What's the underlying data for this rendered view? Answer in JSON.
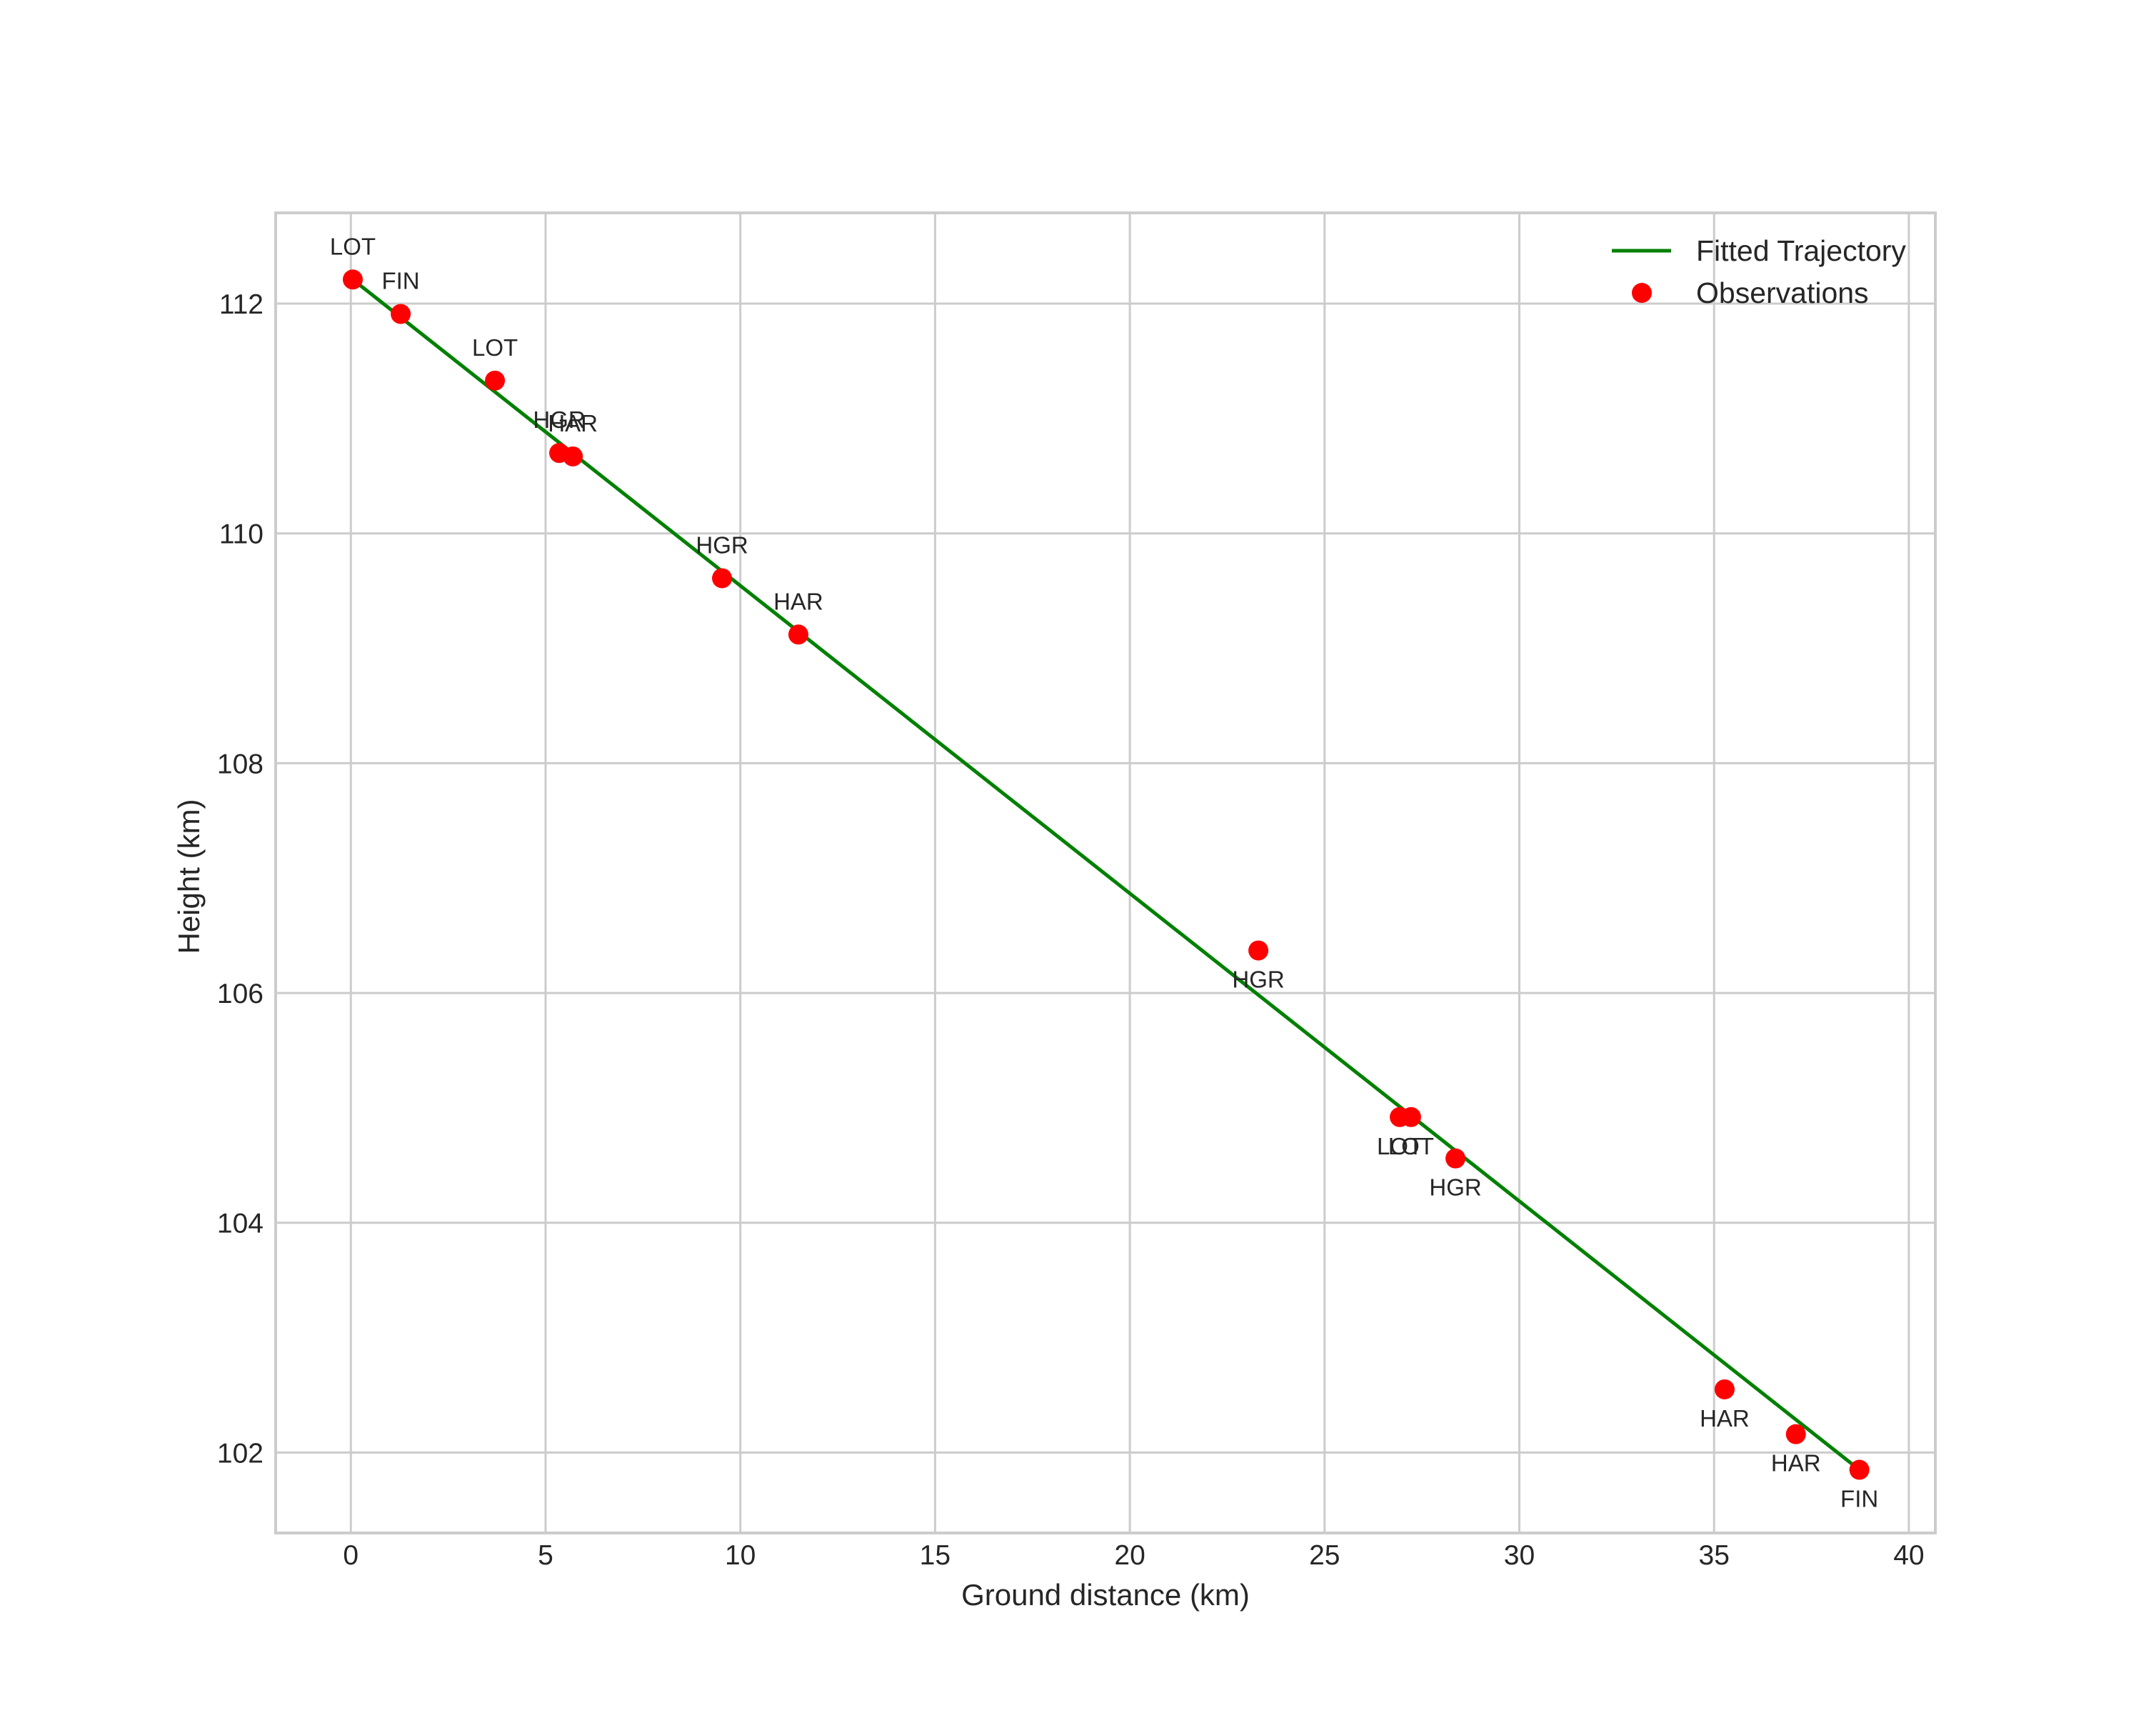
{
  "chart_data": {
    "type": "scatter",
    "title": "",
    "xlabel": "Ground distance (km)",
    "ylabel": "Height (km)",
    "xlim": [
      -1.93,
      40.68
    ],
    "ylim": [
      101.3,
      112.79
    ],
    "xticks": [
      0,
      5,
      10,
      15,
      20,
      25,
      30,
      35,
      40
    ],
    "yticks": [
      102,
      104,
      106,
      108,
      110,
      112
    ],
    "grid": true,
    "legend_position": "upper right",
    "legend": [
      {
        "label": "Fitted Trajectory",
        "kind": "line",
        "color": "#008000"
      },
      {
        "label": "Observations",
        "kind": "marker",
        "color": "#ff0000"
      }
    ],
    "series": [
      {
        "name": "Fitted Trajectory",
        "type": "line",
        "color": "#008000",
        "x": [
          0.05,
          38.73
        ],
        "y": [
          112.21,
          101.85
        ]
      },
      {
        "name": "Observations",
        "type": "scatter",
        "color": "#ff0000",
        "points": [
          {
            "x": 0.05,
            "y": 112.21,
            "label": "LOT",
            "label_pos": "above"
          },
          {
            "x": 1.28,
            "y": 111.91,
            "label": "FIN",
            "label_pos": "above"
          },
          {
            "x": 3.7,
            "y": 111.33,
            "label": "LOT",
            "label_pos": "above"
          },
          {
            "x": 5.35,
            "y": 110.7,
            "label": "HGR",
            "label_pos": "above"
          },
          {
            "x": 5.7,
            "y": 110.67,
            "label": "HAR",
            "label_pos": "above"
          },
          {
            "x": 9.53,
            "y": 109.61,
            "label": "HGR",
            "label_pos": "above"
          },
          {
            "x": 11.49,
            "y": 109.12,
            "label": "HAR",
            "label_pos": "above"
          },
          {
            "x": 23.3,
            "y": 106.37,
            "label": "HGR",
            "label_pos": "below"
          },
          {
            "x": 26.93,
            "y": 104.92,
            "label": "LOT",
            "label_pos": "below"
          },
          {
            "x": 27.22,
            "y": 104.92,
            "label": "LOT",
            "label_pos": "below"
          },
          {
            "x": 28.36,
            "y": 104.56,
            "label": "HGR",
            "label_pos": "below"
          },
          {
            "x": 35.27,
            "y": 102.55,
            "label": "HAR",
            "label_pos": "below"
          },
          {
            "x": 37.1,
            "y": 102.16,
            "label": "HAR",
            "label_pos": "below"
          },
          {
            "x": 38.73,
            "y": 101.85,
            "label": "FIN",
            "label_pos": "below"
          }
        ]
      }
    ]
  },
  "colors": {
    "grid": "#cccccc",
    "text": "#262626",
    "line": "#008000",
    "marker": "#ff0000"
  }
}
